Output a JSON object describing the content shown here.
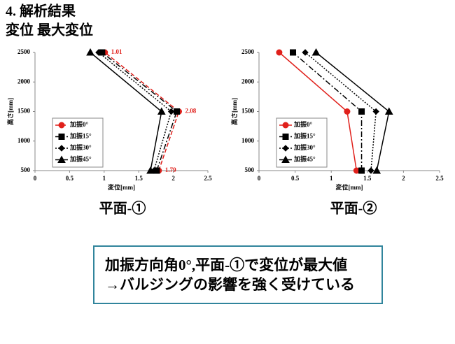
{
  "header": {
    "title": "4. 解析結果",
    "subtitle": "変位 最大変位"
  },
  "chart_data": [
    {
      "type": "line",
      "title": "平面-①",
      "xlabel": "変位[mm]",
      "ylabel": "高さ[mm]",
      "y": [
        500,
        1500,
        2500
      ],
      "xlim": [
        0,
        2.5
      ],
      "xticks": [
        0,
        0.5,
        1,
        1.5,
        2,
        2.5
      ],
      "ylim": [
        500,
        2500
      ],
      "yticks": [
        500,
        1000,
        1500,
        2000,
        2500
      ],
      "legend": "left",
      "series": [
        {
          "name": "加振0°",
          "color": "#e0201b",
          "marker": "circle",
          "dash": "6,3",
          "values": [
            1.79,
            2.08,
            1.01
          ],
          "labels": true
        },
        {
          "name": "加振15°",
          "color": "#000000",
          "marker": "square",
          "dash": "8,3,2,3",
          "values": [
            1.76,
            2.05,
            0.97
          ]
        },
        {
          "name": "加振30°",
          "color": "#000000",
          "marker": "diamond",
          "dash": "2,2",
          "values": [
            1.72,
            1.97,
            0.92
          ]
        },
        {
          "name": "加振45°",
          "color": "#000000",
          "marker": "triangle",
          "dash": "none",
          "values": [
            1.67,
            1.83,
            0.8
          ]
        }
      ]
    },
    {
      "type": "line",
      "title": "平面-②",
      "xlabel": "変位[mm]",
      "ylabel": "高さ[mm]",
      "y": [
        500,
        1500,
        2500
      ],
      "xlim": [
        0,
        2.5
      ],
      "xticks": [
        0,
        0.5,
        1,
        1.5,
        2,
        2.5
      ],
      "ylim": [
        500,
        2500
      ],
      "yticks": [
        500,
        1000,
        1500,
        2000,
        2500
      ],
      "legend": "left",
      "series": [
        {
          "name": "加振0°",
          "color": "#e0201b",
          "marker": "circle",
          "dash": "none",
          "values": [
            1.35,
            1.22,
            0.28
          ]
        },
        {
          "name": "加振15°",
          "color": "#000000",
          "marker": "square",
          "dash": "8,3,2,3",
          "values": [
            1.42,
            1.42,
            0.47
          ]
        },
        {
          "name": "加振30°",
          "color": "#000000",
          "marker": "diamond",
          "dash": "2,2",
          "values": [
            1.55,
            1.62,
            0.64
          ]
        },
        {
          "name": "加振45°",
          "color": "#000000",
          "marker": "triangle",
          "dash": "none",
          "values": [
            1.63,
            1.8,
            0.79
          ]
        }
      ]
    }
  ],
  "note": {
    "lines": [
      "加振方向角0°,平面-①で変位が最大値",
      "→バルジングの影響を強く受けている"
    ]
  }
}
